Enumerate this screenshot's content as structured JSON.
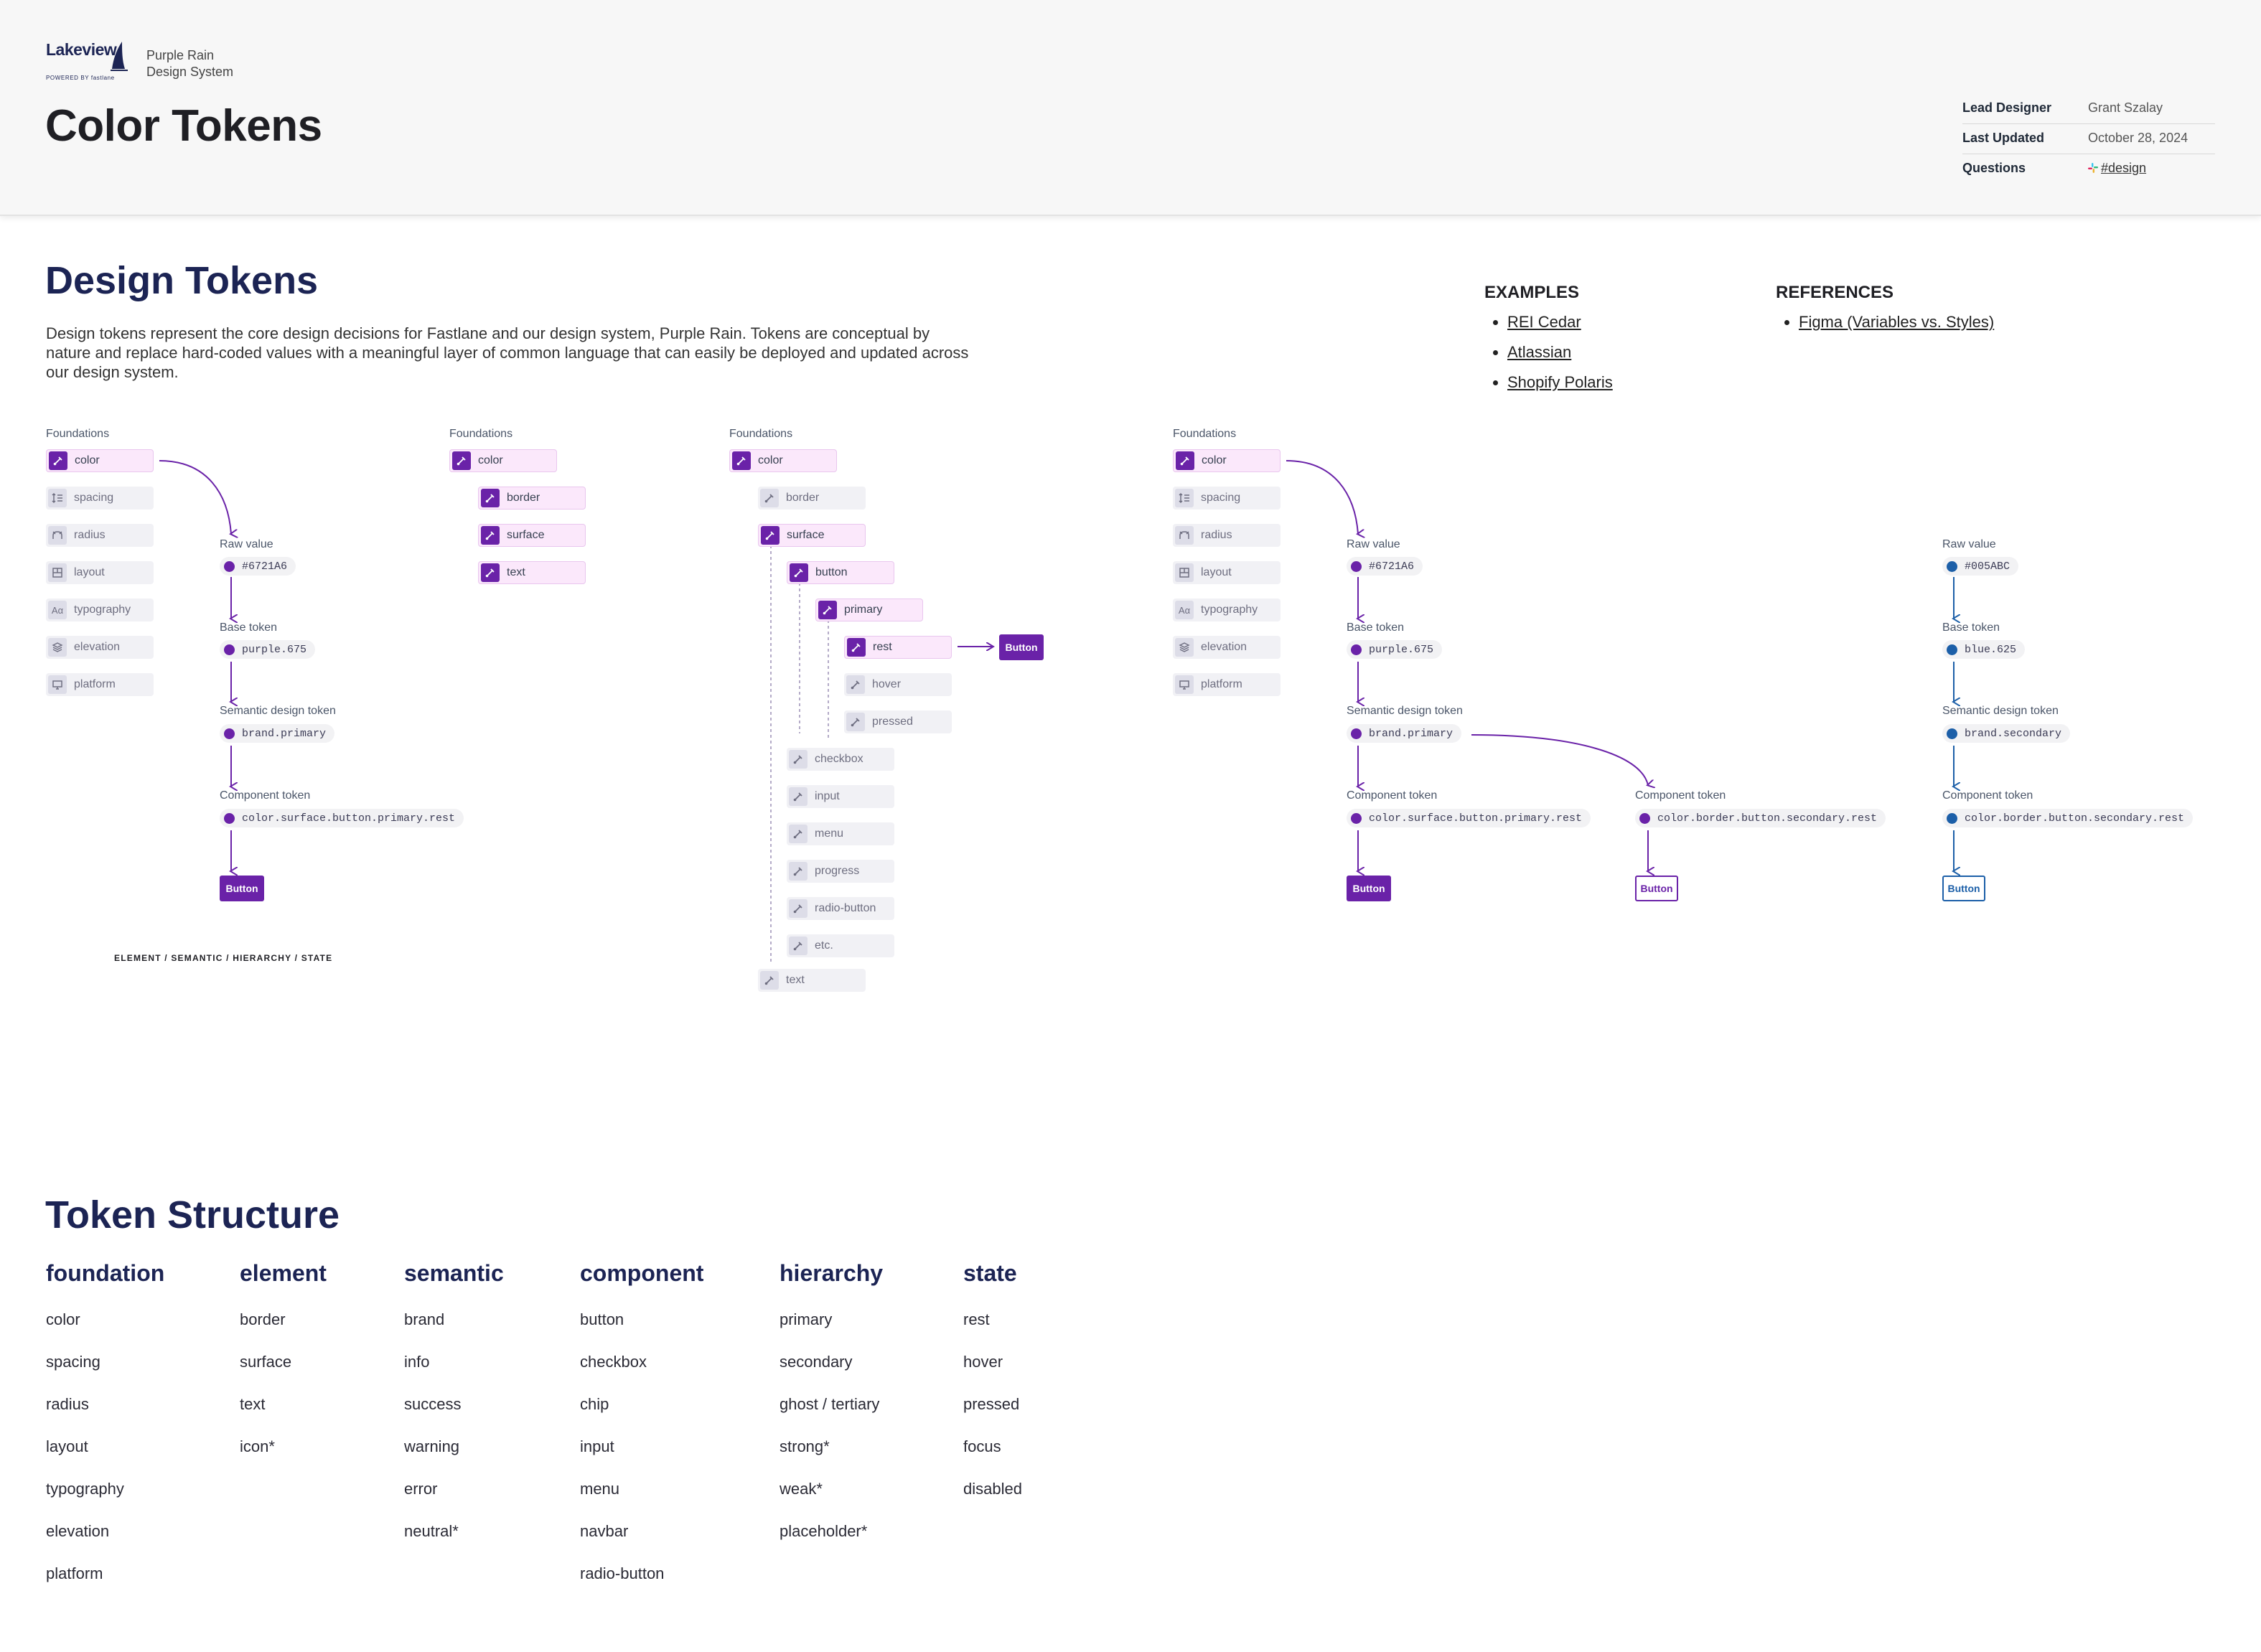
{
  "header": {
    "logo_text": "Lakeview",
    "logo_sub": "POWERED BY fastlane",
    "project_line1": "Purple Rain",
    "project_line2": "Design System",
    "title": "Color Tokens",
    "meta": [
      {
        "key": "Lead Designer",
        "value": "Grant Szalay"
      },
      {
        "key": "Last Updated",
        "value": "October 28, 2024"
      },
      {
        "key": "Questions",
        "value": "#design"
      }
    ]
  },
  "intro": {
    "heading": "Design Tokens",
    "body": "Design tokens represent the core design decisions for Fastlane and our design system, Purple Rain. Tokens are conceptual by nature and replace hard-coded values with a meaningful layer of common language that can easily be deployed and updated across our design system."
  },
  "examples": {
    "heading": "EXAMPLES",
    "items": [
      "REI Cedar",
      "Atlassian",
      "Shopify Polaris"
    ]
  },
  "references": {
    "heading": "REFERENCES",
    "items": [
      "Figma (Variables vs. Styles)"
    ]
  },
  "diagram": {
    "foundations_label": "Foundations",
    "foundations": [
      "color",
      "spacing",
      "radius",
      "layout",
      "typography",
      "elevation",
      "platform"
    ],
    "raw_label": "Raw value",
    "base_label": "Base token",
    "semantic_label": "Semantic design token",
    "component_label": "Component token",
    "raw_purple": "#6721A6",
    "base_purple": "purple.675",
    "semantic_purple": "brand.primary",
    "component_purple": "color.surface.button.primary.rest",
    "component_secondary": "color.border.button.secondary.rest",
    "raw_blue": "#005ABC",
    "base_blue": "blue.625",
    "semantic_blue": "brand.secondary",
    "button_label": "Button",
    "path_caption": "ELEMENT / SEMANTIC / HIERARCHY / STATE",
    "elements": [
      "border",
      "surface",
      "text"
    ],
    "tree_components": [
      "checkbox",
      "input",
      "menu",
      "progress",
      "radio-button",
      "etc."
    ],
    "tree_button": "button",
    "tree_primary": "primary",
    "tree_states": [
      "rest",
      "hover",
      "pressed"
    ],
    "colors": {
      "purple": "#6a22a8",
      "blue": "#1c5fa8",
      "highlight": "#fbe8fb"
    }
  },
  "structure": {
    "heading": "Token Structure",
    "columns": [
      {
        "title": "foundation",
        "items": [
          "color",
          "spacing",
          "radius",
          "layout",
          "typography",
          "elevation",
          "platform"
        ]
      },
      {
        "title": "element",
        "items": [
          "border",
          "surface",
          "text",
          "icon*"
        ]
      },
      {
        "title": "semantic",
        "items": [
          "brand",
          "info",
          "success",
          "warning",
          "error",
          "neutral*"
        ]
      },
      {
        "title": "component",
        "items": [
          "button",
          "checkbox",
          "chip",
          "input",
          "menu",
          "navbar",
          "radio-button"
        ]
      },
      {
        "title": "hierarchy",
        "items": [
          "primary",
          "secondary",
          "ghost / tertiary",
          "strong*",
          "weak*",
          "placeholder*"
        ]
      },
      {
        "title": "state",
        "items": [
          "rest",
          "hover",
          "pressed",
          "focus",
          "disabled"
        ]
      }
    ]
  }
}
